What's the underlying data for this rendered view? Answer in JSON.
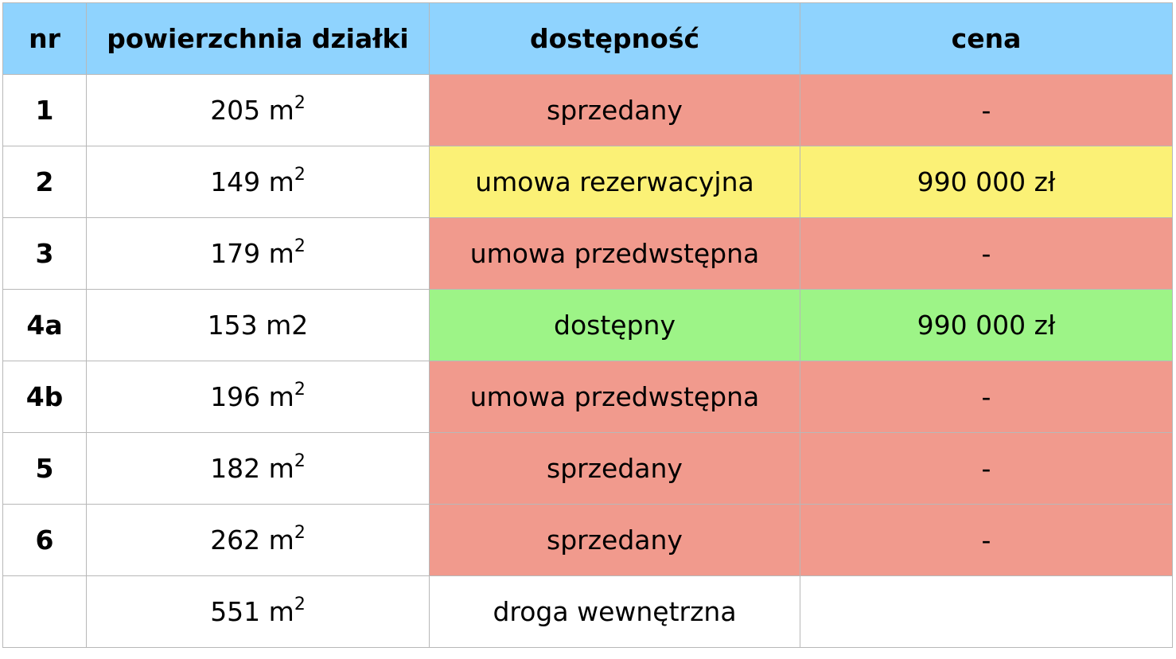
{
  "headers": {
    "nr": "nr",
    "area": "powierzchnia działki",
    "status": "dostępność",
    "price": "cena"
  },
  "colors": {
    "header": "#8fd3fe",
    "sold": "#f19a8d",
    "reserved": "#fbf176",
    "available": "#9df487",
    "none": "#ffffff"
  },
  "rows": [
    {
      "nr": "1",
      "area": "205 m",
      "area_sup": "2",
      "status": "sprzedany",
      "price": "-",
      "color": "#f19a8d"
    },
    {
      "nr": "2",
      "area": "149 m",
      "area_sup": "2",
      "status": "umowa rezerwacyjna",
      "price": "990 000 zł",
      "color": "#fbf176"
    },
    {
      "nr": "3",
      "area": "179 m",
      "area_sup": "2",
      "status": "umowa przedwstępna",
      "price": "-",
      "color": "#f19a8d"
    },
    {
      "nr": "4a",
      "area": "153 m2",
      "area_sup": "",
      "status": "dostępny",
      "price": "990 000 zł",
      "color": "#9df487"
    },
    {
      "nr": "4b",
      "area": "196 m",
      "area_sup": "2",
      "status": "umowa przedwstępna",
      "price": "-",
      "color": "#f19a8d"
    },
    {
      "nr": "5",
      "area": "182 m",
      "area_sup": "2",
      "status": "sprzedany",
      "price": "-",
      "color": "#f19a8d"
    },
    {
      "nr": "6",
      "area": "262 m",
      "area_sup": "2",
      "status": "sprzedany",
      "price": "-",
      "color": "#f19a8d"
    },
    {
      "nr": "",
      "area": "551 m",
      "area_sup": "2",
      "status": "droga wewnętrzna",
      "price": "",
      "color": "#ffffff"
    }
  ]
}
